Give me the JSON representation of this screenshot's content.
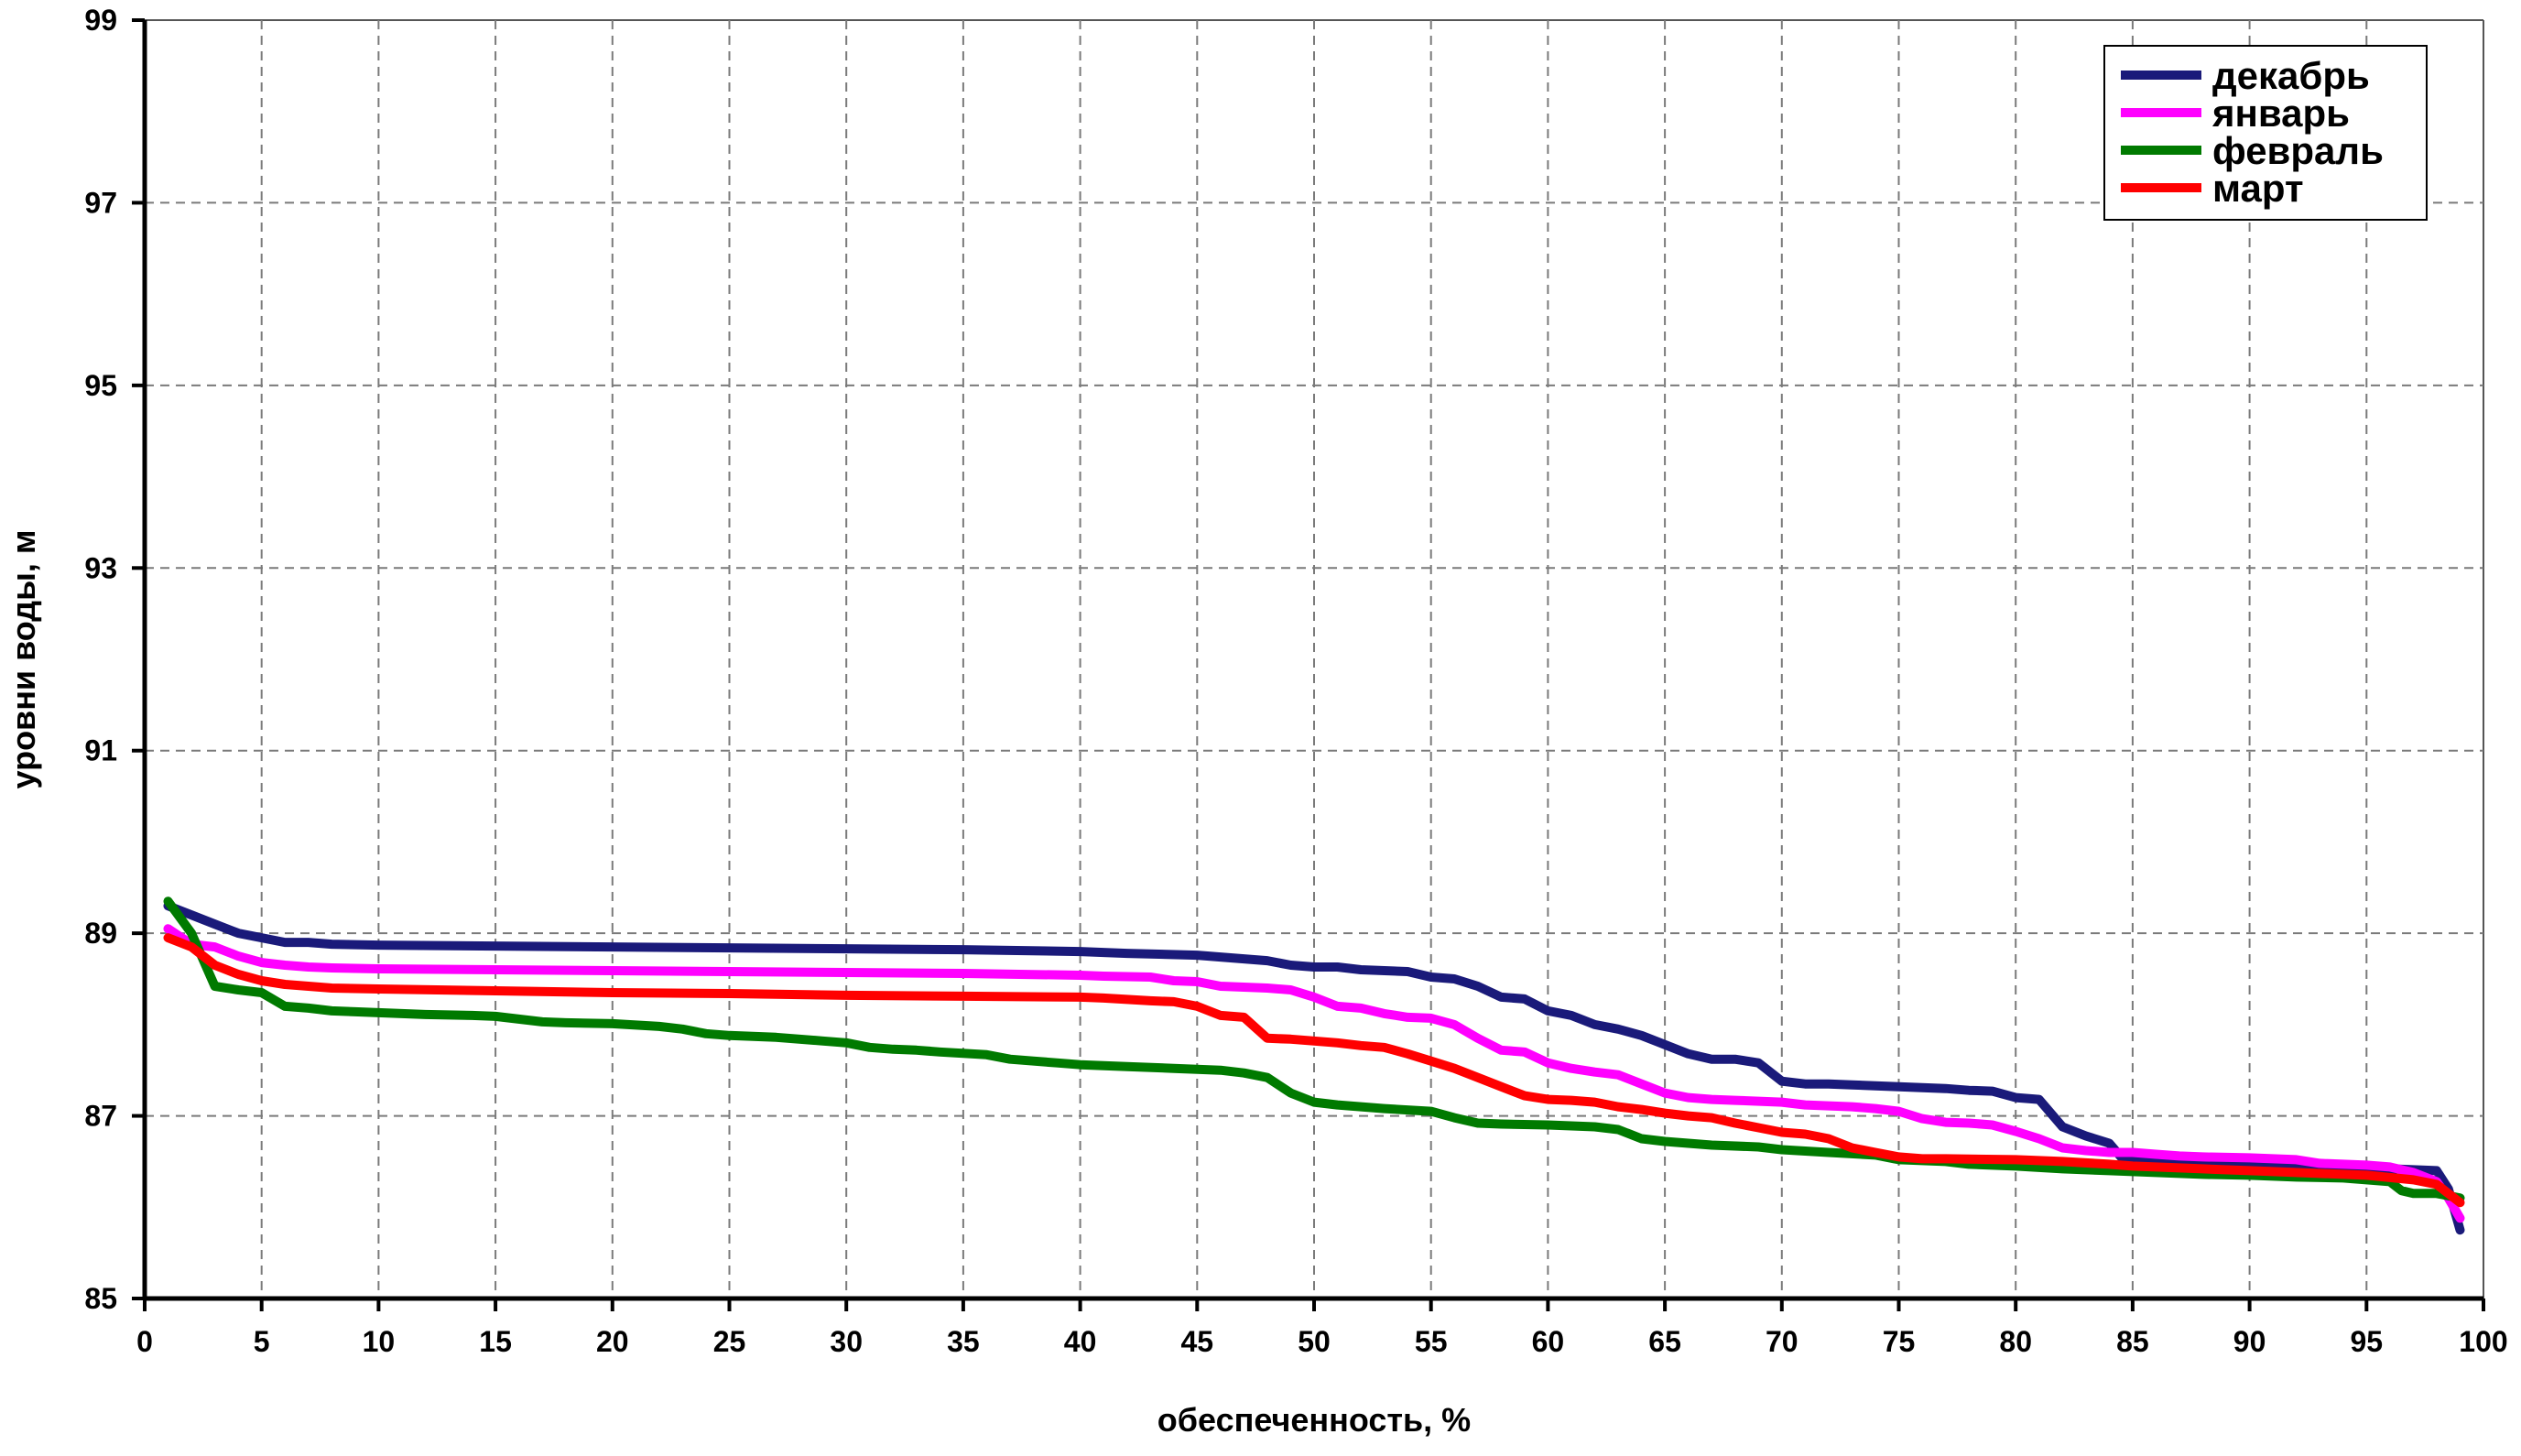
{
  "chart_data": {
    "type": "line",
    "title": "",
    "xlabel": "обеспеченность, %",
    "ylabel": "уровни воды, м",
    "xlim": [
      0,
      100
    ],
    "ylim": [
      85,
      99
    ],
    "xticks": [
      "0",
      "5",
      "10",
      "15",
      "20",
      "25",
      "30",
      "35",
      "40",
      "45",
      "50",
      "55",
      "60",
      "65",
      "70",
      "75",
      "80",
      "85",
      "90",
      "95",
      "100"
    ],
    "yticks": [
      "85",
      "87",
      "89",
      "91",
      "93",
      "95",
      "97",
      "99"
    ],
    "grid": true,
    "legend_position": "top-right",
    "series": [
      {
        "name": "декабрь",
        "color": "#1a1a7a",
        "points": [
          [
            1,
            89.3
          ],
          [
            2,
            89.2
          ],
          [
            3,
            89.1
          ],
          [
            4,
            89.0
          ],
          [
            5,
            88.95
          ],
          [
            6,
            88.9
          ],
          [
            7,
            88.9
          ],
          [
            8,
            88.88
          ],
          [
            10,
            88.87
          ],
          [
            15,
            88.86
          ],
          [
            20,
            88.85
          ],
          [
            25,
            88.84
          ],
          [
            30,
            88.83
          ],
          [
            35,
            88.82
          ],
          [
            40,
            88.8
          ],
          [
            42,
            88.78
          ],
          [
            45,
            88.76
          ],
          [
            46,
            88.74
          ],
          [
            48,
            88.7
          ],
          [
            49,
            88.65
          ],
          [
            50,
            88.63
          ],
          [
            51,
            88.63
          ],
          [
            52,
            88.6
          ],
          [
            54,
            88.58
          ],
          [
            55,
            88.52
          ],
          [
            56,
            88.5
          ],
          [
            57,
            88.42
          ],
          [
            58,
            88.3
          ],
          [
            59,
            88.28
          ],
          [
            60,
            88.15
          ],
          [
            61,
            88.1
          ],
          [
            62,
            88.0
          ],
          [
            63,
            87.95
          ],
          [
            64,
            87.88
          ],
          [
            65,
            87.78
          ],
          [
            66,
            87.68
          ],
          [
            67,
            87.62
          ],
          [
            68,
            87.62
          ],
          [
            69,
            87.58
          ],
          [
            70,
            87.38
          ],
          [
            71,
            87.35
          ],
          [
            72,
            87.35
          ],
          [
            73,
            87.34
          ],
          [
            74,
            87.33
          ],
          [
            75,
            87.32
          ],
          [
            76,
            87.31
          ],
          [
            77,
            87.3
          ],
          [
            78,
            87.28
          ],
          [
            79,
            87.27
          ],
          [
            80,
            87.2
          ],
          [
            81,
            87.18
          ],
          [
            82,
            86.88
          ],
          [
            83,
            86.78
          ],
          [
            84,
            86.7
          ],
          [
            84.5,
            86.55
          ],
          [
            85,
            86.52
          ],
          [
            86,
            86.5
          ],
          [
            87,
            86.48
          ],
          [
            88,
            86.47
          ],
          [
            90,
            86.46
          ],
          [
            92,
            86.45
          ],
          [
            95,
            86.43
          ],
          [
            98,
            86.4
          ],
          [
            98.5,
            86.2
          ],
          [
            99,
            85.75
          ]
        ]
      },
      {
        "name": "январь",
        "color": "#ff00ff",
        "points": [
          [
            1,
            89.05
          ],
          [
            2,
            88.88
          ],
          [
            3,
            88.85
          ],
          [
            4,
            88.75
          ],
          [
            5,
            88.68
          ],
          [
            6,
            88.65
          ],
          [
            7,
            88.63
          ],
          [
            8,
            88.62
          ],
          [
            10,
            88.61
          ],
          [
            15,
            88.6
          ],
          [
            20,
            88.59
          ],
          [
            25,
            88.58
          ],
          [
            30,
            88.57
          ],
          [
            35,
            88.56
          ],
          [
            40,
            88.54
          ],
          [
            41,
            88.53
          ],
          [
            43,
            88.52
          ],
          [
            44,
            88.48
          ],
          [
            45,
            88.47
          ],
          [
            46,
            88.42
          ],
          [
            48,
            88.4
          ],
          [
            49,
            88.38
          ],
          [
            50,
            88.3
          ],
          [
            51,
            88.2
          ],
          [
            52,
            88.18
          ],
          [
            53,
            88.12
          ],
          [
            54,
            88.08
          ],
          [
            55,
            88.07
          ],
          [
            56,
            88.0
          ],
          [
            57,
            87.85
          ],
          [
            58,
            87.72
          ],
          [
            59,
            87.7
          ],
          [
            60,
            87.58
          ],
          [
            61,
            87.52
          ],
          [
            62,
            87.48
          ],
          [
            63,
            87.45
          ],
          [
            64,
            87.35
          ],
          [
            65,
            87.25
          ],
          [
            66,
            87.2
          ],
          [
            67,
            87.18
          ],
          [
            68,
            87.17
          ],
          [
            70,
            87.15
          ],
          [
            71,
            87.12
          ],
          [
            72,
            87.11
          ],
          [
            73,
            87.1
          ],
          [
            74,
            87.08
          ],
          [
            75,
            87.05
          ],
          [
            76,
            86.97
          ],
          [
            77,
            86.93
          ],
          [
            78,
            86.92
          ],
          [
            79,
            86.9
          ],
          [
            80,
            86.83
          ],
          [
            81,
            86.75
          ],
          [
            82,
            86.65
          ],
          [
            83,
            86.62
          ],
          [
            84,
            86.6
          ],
          [
            85,
            86.6
          ],
          [
            86,
            86.58
          ],
          [
            87,
            86.56
          ],
          [
            88,
            86.55
          ],
          [
            90,
            86.54
          ],
          [
            91,
            86.53
          ],
          [
            92,
            86.52
          ],
          [
            93,
            86.48
          ],
          [
            95,
            86.46
          ],
          [
            96,
            86.44
          ],
          [
            97,
            86.38
          ],
          [
            98,
            86.28
          ],
          [
            98.5,
            86.1
          ],
          [
            99,
            85.88
          ]
        ]
      },
      {
        "name": "февраль",
        "color": "#007a00",
        "points": [
          [
            1,
            89.35
          ],
          [
            2,
            89.0
          ],
          [
            3,
            88.42
          ],
          [
            4,
            88.38
          ],
          [
            5,
            88.35
          ],
          [
            6,
            88.2
          ],
          [
            7,
            88.18
          ],
          [
            8,
            88.15
          ],
          [
            9,
            88.14
          ],
          [
            10,
            88.13
          ],
          [
            12,
            88.11
          ],
          [
            14,
            88.1
          ],
          [
            15,
            88.09
          ],
          [
            16,
            88.06
          ],
          [
            17,
            88.03
          ],
          [
            18,
            88.02
          ],
          [
            20,
            88.01
          ],
          [
            22,
            87.98
          ],
          [
            23,
            87.95
          ],
          [
            24,
            87.9
          ],
          [
            25,
            87.88
          ],
          [
            27,
            87.86
          ],
          [
            29,
            87.82
          ],
          [
            30,
            87.8
          ],
          [
            31,
            87.75
          ],
          [
            32,
            87.73
          ],
          [
            33,
            87.72
          ],
          [
            34,
            87.7
          ],
          [
            36,
            87.67
          ],
          [
            37,
            87.62
          ],
          [
            38,
            87.6
          ],
          [
            39,
            87.58
          ],
          [
            40,
            87.56
          ],
          [
            42,
            87.54
          ],
          [
            44,
            87.52
          ],
          [
            46,
            87.5
          ],
          [
            47,
            87.47
          ],
          [
            48,
            87.42
          ],
          [
            49,
            87.25
          ],
          [
            50,
            87.15
          ],
          [
            51,
            87.12
          ],
          [
            52,
            87.1
          ],
          [
            53,
            87.08
          ],
          [
            55,
            87.05
          ],
          [
            56,
            86.98
          ],
          [
            57,
            86.92
          ],
          [
            58,
            86.91
          ],
          [
            60,
            86.9
          ],
          [
            62,
            86.88
          ],
          [
            63,
            86.85
          ],
          [
            64,
            86.75
          ],
          [
            65,
            86.72
          ],
          [
            67,
            86.68
          ],
          [
            69,
            86.66
          ],
          [
            70,
            86.63
          ],
          [
            72,
            86.6
          ],
          [
            74,
            86.57
          ],
          [
            75,
            86.52
          ],
          [
            77,
            86.5
          ],
          [
            78,
            86.47
          ],
          [
            80,
            86.45
          ],
          [
            82,
            86.42
          ],
          [
            84,
            86.4
          ],
          [
            86,
            86.38
          ],
          [
            88,
            86.36
          ],
          [
            90,
            86.35
          ],
          [
            92,
            86.33
          ],
          [
            94,
            86.32
          ],
          [
            95,
            86.3
          ],
          [
            96,
            86.28
          ],
          [
            96.5,
            86.18
          ],
          [
            97,
            86.15
          ],
          [
            98,
            86.15
          ],
          [
            99,
            86.1
          ]
        ]
      },
      {
        "name": "март",
        "color": "#ff0000",
        "points": [
          [
            1,
            88.95
          ],
          [
            2,
            88.85
          ],
          [
            3,
            88.65
          ],
          [
            4,
            88.55
          ],
          [
            5,
            88.48
          ],
          [
            6,
            88.44
          ],
          [
            7,
            88.42
          ],
          [
            8,
            88.4
          ],
          [
            10,
            88.39
          ],
          [
            15,
            88.37
          ],
          [
            20,
            88.35
          ],
          [
            25,
            88.34
          ],
          [
            30,
            88.32
          ],
          [
            35,
            88.31
          ],
          [
            40,
            88.3
          ],
          [
            41,
            88.29
          ],
          [
            43,
            88.26
          ],
          [
            44,
            88.25
          ],
          [
            45,
            88.2
          ],
          [
            46,
            88.1
          ],
          [
            47,
            88.08
          ],
          [
            48,
            87.85
          ],
          [
            49,
            87.84
          ],
          [
            50,
            87.82
          ],
          [
            51,
            87.8
          ],
          [
            52,
            87.77
          ],
          [
            53,
            87.75
          ],
          [
            54,
            87.68
          ],
          [
            55,
            87.6
          ],
          [
            56,
            87.52
          ],
          [
            57,
            87.42
          ],
          [
            58,
            87.32
          ],
          [
            59,
            87.22
          ],
          [
            60,
            87.18
          ],
          [
            61,
            87.17
          ],
          [
            62,
            87.15
          ],
          [
            63,
            87.1
          ],
          [
            64,
            87.07
          ],
          [
            65,
            87.03
          ],
          [
            66,
            87.0
          ],
          [
            67,
            86.98
          ],
          [
            68,
            86.92
          ],
          [
            69,
            86.87
          ],
          [
            70,
            86.82
          ],
          [
            71,
            86.8
          ],
          [
            72,
            86.75
          ],
          [
            73,
            86.65
          ],
          [
            74,
            86.6
          ],
          [
            75,
            86.55
          ],
          [
            76,
            86.53
          ],
          [
            77,
            86.53
          ],
          [
            80,
            86.52
          ],
          [
            82,
            86.5
          ],
          [
            84,
            86.47
          ],
          [
            85,
            86.45
          ],
          [
            87,
            86.43
          ],
          [
            88,
            86.42
          ],
          [
            90,
            86.4
          ],
          [
            92,
            86.38
          ],
          [
            95,
            86.35
          ],
          [
            97,
            86.3
          ],
          [
            98,
            86.25
          ],
          [
            99,
            86.05
          ]
        ]
      }
    ]
  }
}
